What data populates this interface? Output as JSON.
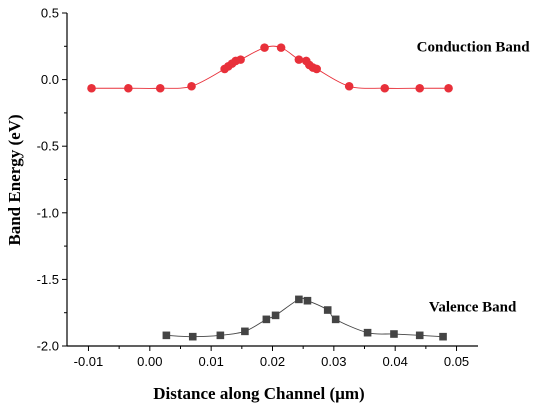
{
  "chart_data": {
    "type": "scatter",
    "xlabel": "Distance along Channel (µm)",
    "ylabel": "Band Energy (eV)",
    "xlim": [
      -0.0135,
      0.0535
    ],
    "ylim": [
      -2.0,
      0.5
    ],
    "x_ticks": [
      -0.01,
      0.0,
      0.01,
      0.02,
      0.03,
      0.04,
      0.05
    ],
    "x_tick_labels": [
      "-0.01",
      "0.00",
      "0.01",
      "0.02",
      "0.03",
      "0.04",
      "0.05"
    ],
    "y_ticks": [
      0.5,
      0.0,
      -0.5,
      -1.0,
      -1.5,
      -2.0
    ],
    "y_tick_labels": [
      "0.5",
      "0.0",
      "-0.5",
      "-1.0",
      "-1.5",
      "-2.0"
    ],
    "grid": false,
    "annotations": [
      {
        "text": "Conduction Band",
        "x": 0.0435,
        "y": 0.21
      },
      {
        "text": "Valence Band",
        "x": 0.0455,
        "y": -1.74
      }
    ],
    "series": [
      {
        "marker": "circle",
        "color": "#e8303a",
        "x": [
          -0.0095,
          -0.0035,
          0.0017,
          0.0068,
          0.0122,
          0.0128,
          0.0134,
          0.014,
          0.0148,
          0.0187,
          0.0214,
          0.0243,
          0.0255,
          0.026,
          0.0266,
          0.0272,
          0.0325,
          0.0383,
          0.044,
          0.0487
        ],
        "y": [
          -0.065,
          -0.065,
          -0.065,
          -0.05,
          0.08,
          0.1,
          0.12,
          0.14,
          0.15,
          0.24,
          0.24,
          0.15,
          0.14,
          0.11,
          0.09,
          0.08,
          -0.05,
          -0.065,
          -0.065,
          -0.065
        ]
      },
      {
        "marker": "square",
        "color": "#444444",
        "x": [
          0.0027,
          0.007,
          0.0115,
          0.0155,
          0.019,
          0.0205,
          0.0243,
          0.0257,
          0.029,
          0.0303,
          0.0355,
          0.0398,
          0.044,
          0.0478
        ],
        "y": [
          -1.92,
          -1.93,
          -1.92,
          -1.89,
          -1.8,
          -1.77,
          -1.65,
          -1.66,
          -1.73,
          -1.8,
          -1.9,
          -1.91,
          -1.92,
          -1.93
        ]
      }
    ]
  }
}
